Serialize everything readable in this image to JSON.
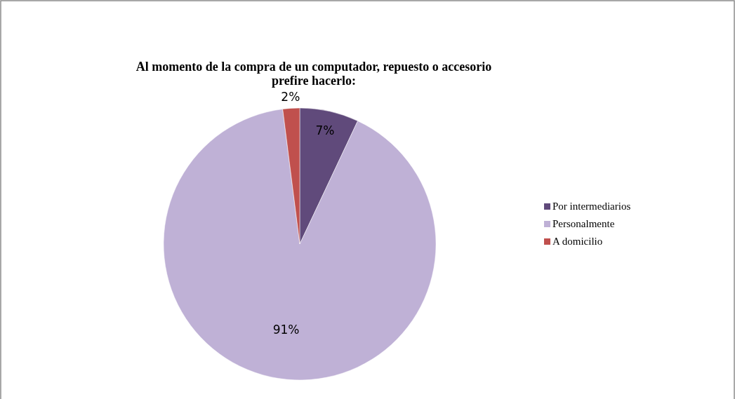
{
  "chart_data": {
    "type": "pie",
    "title": "Al momento de la compra de un computador, repuesto o accesorio prefire hacerlo:",
    "categories": [
      "Por intermediarios",
      "Personalmente",
      "A domicilio"
    ],
    "values": [
      7,
      91,
      2
    ],
    "colors": [
      "#604a7b",
      "#bfb1d6",
      "#c0504d"
    ],
    "value_labels": [
      "7%",
      "91%",
      "2%"
    ],
    "legend": "right"
  }
}
